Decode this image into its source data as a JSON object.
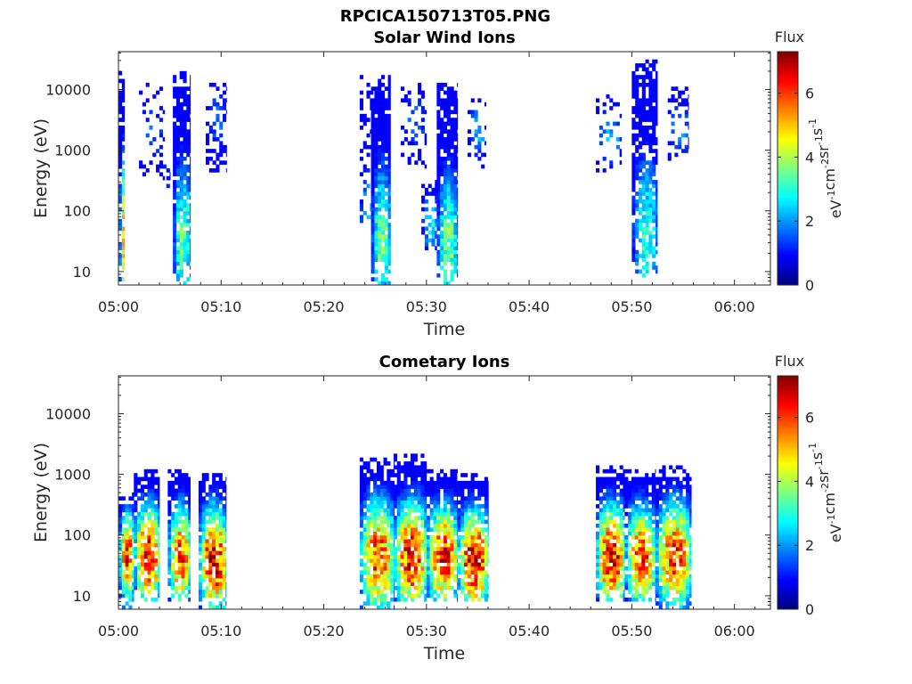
{
  "figure_title": "RPCICA150713T05.PNG",
  "colors": {
    "jet_low": "#00007f",
    "jet_mid": "#7fff7f",
    "jet_high": "#7f0000",
    "axis": "#262626"
  },
  "chart_data": [
    {
      "type": "heatmap",
      "title": "Solar Wind Ions",
      "xlabel": "Time",
      "ylabel": "Energy (eV)",
      "x_ticks": [
        "05:00",
        "05:10",
        "05:20",
        "05:30",
        "05:40",
        "05:50",
        "06:00"
      ],
      "xlim_minutes": [
        0,
        63.5
      ],
      "y_scale": "log",
      "y_ticks": [
        10,
        100,
        1000,
        10000
      ],
      "y_tick_labels": [
        "10",
        "100",
        "1000",
        "10000"
      ],
      "ylim": [
        6,
        42000
      ],
      "colorbar": {
        "title": "Flux",
        "label": "eV-1cm-2sr-1s-1",
        "range": [
          0,
          7.3
        ],
        "ticks": [
          "0",
          "2",
          "4",
          "6"
        ]
      },
      "clusters": [
        {
          "t": [
            0.0,
            0.6
          ],
          "e_low": 6,
          "e_high": 18000,
          "peak_e": 40,
          "peak_flux": 4.8,
          "density": 0.75
        },
        {
          "t": [
            2.0,
            4.5
          ],
          "e_low": 300,
          "e_high": 12000,
          "peak_e": 2000,
          "peak_flux": 1.6,
          "density": 0.22
        },
        {
          "t": [
            4.0,
            5.0
          ],
          "e_low": 200,
          "e_high": 700,
          "peak_e": 400,
          "peak_flux": 1.3,
          "density": 0.25
        },
        {
          "t": [
            5.3,
            7.0
          ],
          "e_low": 6,
          "e_high": 20000,
          "peak_e": 30,
          "peak_flux": 3.5,
          "density": 0.85
        },
        {
          "t": [
            8.5,
            10.5
          ],
          "e_low": 400,
          "e_high": 12000,
          "peak_e": 3000,
          "peak_flux": 1.7,
          "density": 0.35
        },
        {
          "t": [
            23.5,
            24.8
          ],
          "e_low": 60,
          "e_high": 20000,
          "peak_e": 40,
          "peak_flux": 3.2,
          "density": 0.35
        },
        {
          "t": [
            24.6,
            26.5
          ],
          "e_low": 6,
          "e_high": 15000,
          "peak_e": 30,
          "peak_flux": 3.6,
          "density": 0.88
        },
        {
          "t": [
            27.5,
            30.0
          ],
          "e_low": 500,
          "e_high": 12000,
          "peak_e": 3000,
          "peak_flux": 1.7,
          "density": 0.3
        },
        {
          "t": [
            29.5,
            31.0
          ],
          "e_low": 20,
          "e_high": 300,
          "peak_e": 60,
          "peak_flux": 2.9,
          "density": 0.55
        },
        {
          "t": [
            31.0,
            33.0
          ],
          "e_low": 6,
          "e_high": 12000,
          "peak_e": 25,
          "peak_flux": 3.6,
          "density": 0.88
        },
        {
          "t": [
            34.0,
            35.8
          ],
          "e_low": 500,
          "e_high": 9000,
          "peak_e": 2000,
          "peak_flux": 2.2,
          "density": 0.28
        },
        {
          "t": [
            46.5,
            49.0
          ],
          "e_low": 400,
          "e_high": 10000,
          "peak_e": 1500,
          "peak_flux": 2.3,
          "density": 0.2
        },
        {
          "t": [
            50.0,
            52.5
          ],
          "e_low": 8,
          "e_high": 30000,
          "peak_e": 40,
          "peak_flux": 3.1,
          "density": 0.75
        },
        {
          "t": [
            53.5,
            55.5
          ],
          "e_low": 600,
          "e_high": 10000,
          "peak_e": 2000,
          "peak_flux": 2.2,
          "density": 0.3
        }
      ]
    },
    {
      "type": "heatmap",
      "title": "Cometary Ions",
      "xlabel": "Time",
      "ylabel": "Energy (eV)",
      "x_ticks": [
        "05:00",
        "05:10",
        "05:20",
        "05:30",
        "05:40",
        "05:50",
        "06:00"
      ],
      "xlim_minutes": [
        0,
        63.5
      ],
      "y_scale": "log",
      "y_ticks": [
        10,
        100,
        1000,
        10000
      ],
      "y_tick_labels": [
        "10",
        "100",
        "1000",
        "10000"
      ],
      "ylim": [
        6,
        42000
      ],
      "colorbar": {
        "title": "Flux",
        "label": "eV-1cm-2sr-1s-1",
        "range": [
          0,
          7.3
        ],
        "ticks": [
          "0",
          "2",
          "4",
          "6"
        ]
      },
      "clusters": [
        {
          "t": [
            0.0,
            1.5
          ],
          "e_low": 6,
          "e_high": 450,
          "peak_e": 40,
          "peak_flux": 6.4,
          "density": 0.85
        },
        {
          "t": [
            1.5,
            4.0
          ],
          "e_low": 8,
          "e_high": 1200,
          "peak_e": 40,
          "peak_flux": 6.6,
          "density": 0.85
        },
        {
          "t": [
            4.8,
            7.0
          ],
          "e_low": 8,
          "e_high": 1100,
          "peak_e": 40,
          "peak_flux": 6.0,
          "density": 0.85
        },
        {
          "t": [
            7.8,
            10.5
          ],
          "e_low": 6,
          "e_high": 1000,
          "peak_e": 35,
          "peak_flux": 6.8,
          "density": 0.85
        },
        {
          "t": [
            23.5,
            26.8
          ],
          "e_low": 6,
          "e_high": 1800,
          "peak_e": 40,
          "peak_flux": 6.1,
          "density": 0.85
        },
        {
          "t": [
            26.8,
            30.0
          ],
          "e_low": 8,
          "e_high": 1900,
          "peak_e": 40,
          "peak_flux": 6.5,
          "density": 0.85
        },
        {
          "t": [
            30.0,
            33.0
          ],
          "e_low": 8,
          "e_high": 1200,
          "peak_e": 40,
          "peak_flux": 6.4,
          "density": 0.85
        },
        {
          "t": [
            33.0,
            36.0
          ],
          "e_low": 8,
          "e_high": 1000,
          "peak_e": 35,
          "peak_flux": 6.9,
          "density": 0.85
        },
        {
          "t": [
            46.5,
            49.3
          ],
          "e_low": 8,
          "e_high": 1300,
          "peak_e": 40,
          "peak_flux": 6.7,
          "density": 0.85
        },
        {
          "t": [
            49.3,
            52.3
          ],
          "e_low": 8,
          "e_high": 1200,
          "peak_e": 40,
          "peak_flux": 6.0,
          "density": 0.85
        },
        {
          "t": [
            52.3,
            55.8
          ],
          "e_low": 6,
          "e_high": 1400,
          "peak_e": 40,
          "peak_flux": 6.1,
          "density": 0.85
        }
      ]
    }
  ]
}
